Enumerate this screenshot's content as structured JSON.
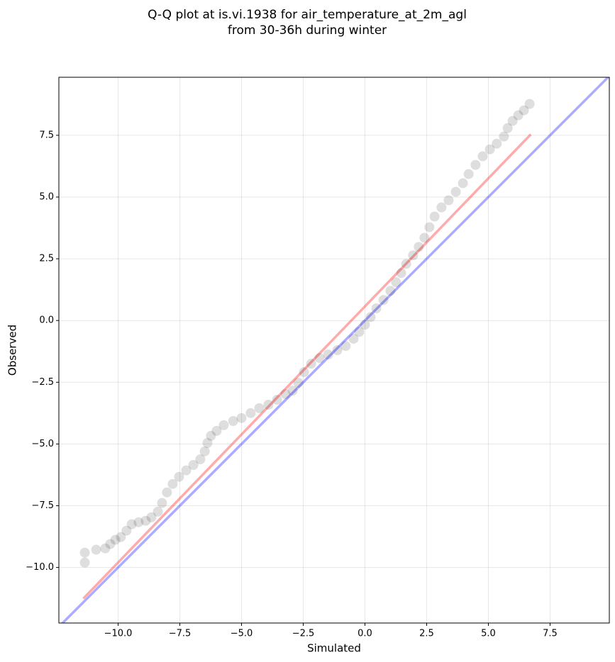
{
  "chart_data": {
    "type": "scatter",
    "title": [
      "Q-Q plot at is.vi.1938 for air_temperature_at_2m_agl",
      "from 30-36h during winter"
    ],
    "xlabel": "Simulated",
    "ylabel": "Observed",
    "xlim": [
      -12.4,
      9.9
    ],
    "ylim": [
      -12.25,
      9.85
    ],
    "xticks": [
      {
        "value": -10,
        "label": "−10.0"
      },
      {
        "value": -7.5,
        "label": "−7.5"
      },
      {
        "value": -5,
        "label": "−5.0"
      },
      {
        "value": -2.5,
        "label": "−2.5"
      },
      {
        "value": 0,
        "label": "0.0"
      },
      2.5,
      {
        "value": 5,
        "label": "5.0"
      },
      7.5
    ],
    "yticks": [
      {
        "value": -10,
        "label": "−10.0"
      },
      {
        "value": -7.5,
        "label": "−7.5"
      },
      {
        "value": -5,
        "label": "−5.0"
      },
      {
        "value": -2.5,
        "label": "−2.5"
      },
      {
        "value": 0,
        "label": "0.0"
      },
      2.5,
      {
        "value": 5,
        "label": "5.0"
      },
      7.5
    ],
    "grid": true,
    "point_color": "#000000",
    "x": [
      -11.35,
      -11.35,
      -10.89,
      -10.52,
      -10.32,
      -10.11,
      -9.89,
      -9.66,
      -9.45,
      -9.17,
      -8.88,
      -8.65,
      -8.39,
      -8.22,
      -8.02,
      -7.79,
      -7.53,
      -7.24,
      -6.95,
      -6.67,
      -6.49,
      -6.38,
      -6.24,
      -6.01,
      -5.72,
      -5.34,
      -5.0,
      -4.63,
      -4.28,
      -3.91,
      -3.56,
      -3.22,
      -2.93,
      -2.7,
      -2.47,
      -2.18,
      -1.84,
      -1.49,
      -1.12,
      -0.78,
      -0.46,
      -0.23,
      0,
      0.23,
      0.46,
      0.75,
      1.03,
      1.26,
      1.47,
      1.67,
      1.95,
      2.18,
      2.41,
      2.61,
      2.82,
      3.1,
      3.39,
      3.68,
      3.97,
      4.2,
      4.48,
      4.77,
      5.06,
      5.34,
      5.63,
      5.78,
      5.98,
      6.21,
      6.44,
      6.67
    ],
    "y": [
      -9.4,
      -9.8,
      -9.28,
      -9.23,
      -9.05,
      -8.88,
      -8.77,
      -8.51,
      -8.25,
      -8.17,
      -8.11,
      -7.97,
      -7.74,
      -7.39,
      -6.96,
      -6.62,
      -6.33,
      -6.07,
      -5.85,
      -5.62,
      -5.3,
      -4.96,
      -4.67,
      -4.47,
      -4.24,
      -4.07,
      -3.95,
      -3.75,
      -3.55,
      -3.41,
      -3.21,
      -2.98,
      -2.84,
      -2.52,
      -2.09,
      -1.75,
      -1.52,
      -1.38,
      -1.2,
      -1.03,
      -0.74,
      -0.46,
      -0.17,
      0.14,
      0.49,
      0.83,
      1.2,
      1.55,
      1.92,
      2.29,
      2.64,
      2.98,
      3.35,
      3.78,
      4.21,
      4.58,
      4.87,
      5.21,
      5.56,
      5.93,
      6.3,
      6.65,
      6.93,
      7.16,
      7.45,
      7.79,
      8.08,
      8.31,
      8.51,
      8.77
    ],
    "lines": [
      {
        "color": "#0000ff",
        "x": [
          -12.4,
          9.9
        ],
        "y": [
          -12.4,
          9.9
        ]
      },
      {
        "color": "#ff0000",
        "x": [
          -11.41,
          6.72
        ],
        "y": [
          -11.26,
          7.54
        ]
      }
    ]
  }
}
